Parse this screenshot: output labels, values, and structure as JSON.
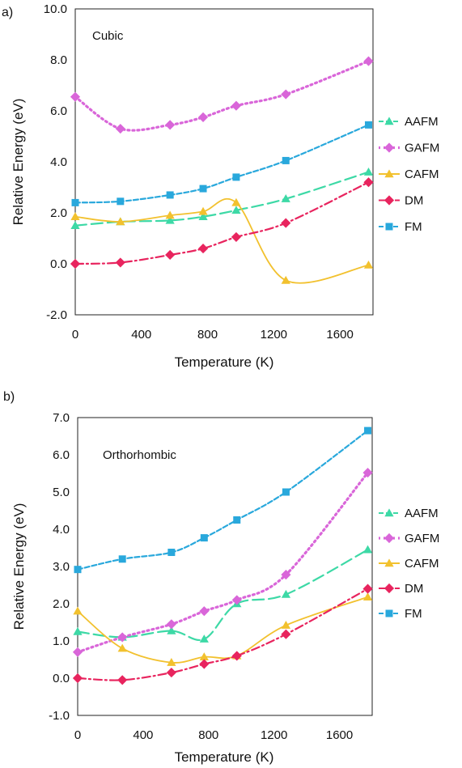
{
  "chart_data": [
    {
      "panel_label": "a)",
      "type": "line",
      "title": "Cubic",
      "xlabel": "Temperature (K)",
      "ylabel": "Relative Energy (eV)",
      "xlim": [
        0,
        1800
      ],
      "ylim": [
        -2,
        10
      ],
      "xticks": [
        0,
        400,
        800,
        1200,
        1600
      ],
      "xtick_labels": [
        "0",
        "400",
        "800",
        "1200",
        "1600"
      ],
      "yticks": [
        -2,
        0,
        2,
        4,
        6,
        8,
        10
      ],
      "ytick_labels": [
        "-2.0",
        "0.0",
        "2.0",
        "4.0",
        "6.0",
        "8.0",
        "10.0"
      ],
      "legend_position": "right",
      "series": [
        {
          "name": "AAFM",
          "color": "#3dd9a6",
          "marker": "triangle",
          "dash": "14,6",
          "x": [
            0,
            273,
            573,
            773,
            973,
            1273,
            1773
          ],
          "y": [
            1.5,
            1.65,
            1.7,
            1.85,
            2.1,
            2.55,
            3.6
          ]
        },
        {
          "name": "GAFM",
          "color": "#d966d9",
          "marker": "diamond",
          "dash": "2,4",
          "x": [
            0,
            273,
            573,
            773,
            973,
            1273,
            1773
          ],
          "y": [
            6.55,
            5.3,
            5.45,
            5.75,
            6.2,
            6.65,
            7.95
          ]
        },
        {
          "name": "CAFM",
          "color": "#f2c12e",
          "marker": "triangle",
          "dash": "",
          "x": [
            0,
            273,
            573,
            773,
            973,
            1273,
            1773
          ],
          "y": [
            1.85,
            1.65,
            1.9,
            2.05,
            2.4,
            -0.65,
            -0.05
          ]
        },
        {
          "name": "DM",
          "color": "#e8245e",
          "marker": "diamond",
          "dash": "10,4,2,4",
          "x": [
            0,
            273,
            573,
            773,
            973,
            1273,
            1773
          ],
          "y": [
            0.0,
            0.05,
            0.35,
            0.6,
            1.05,
            1.6,
            3.2
          ]
        },
        {
          "name": "FM",
          "color": "#29a8dc",
          "marker": "square",
          "dash": "6,3",
          "x": [
            0,
            273,
            573,
            773,
            973,
            1273,
            1773
          ],
          "y": [
            2.4,
            2.45,
            2.7,
            2.95,
            3.4,
            4.05,
            5.45
          ]
        }
      ]
    },
    {
      "panel_label": "b)",
      "type": "line",
      "title": "Orthorhombic",
      "xlabel": "Temperature (K)",
      "ylabel": "Relative Energy (eV)",
      "xlim": [
        0,
        1800
      ],
      "ylim": [
        -1,
        7
      ],
      "xticks": [
        0,
        400,
        800,
        1200,
        1600
      ],
      "xtick_labels": [
        "0",
        "400",
        "800",
        "1200",
        "1600"
      ],
      "yticks": [
        -1,
        0,
        1,
        2,
        3,
        4,
        5,
        6,
        7
      ],
      "ytick_labels": [
        "-1.0",
        "0.0",
        "1.0",
        "2.0",
        "3.0",
        "4.0",
        "5.0",
        "6.0",
        "7.0"
      ],
      "legend_position": "right",
      "series": [
        {
          "name": "AAFM",
          "color": "#3dd9a6",
          "marker": "triangle",
          "dash": "14,6",
          "x": [
            0,
            273,
            573,
            773,
            973,
            1273,
            1773
          ],
          "y": [
            1.25,
            1.1,
            1.27,
            1.05,
            2.0,
            2.25,
            3.45
          ]
        },
        {
          "name": "GAFM",
          "color": "#d966d9",
          "marker": "diamond",
          "dash": "2,4",
          "x": [
            0,
            273,
            573,
            773,
            973,
            1273,
            1773
          ],
          "y": [
            0.7,
            1.1,
            1.45,
            1.8,
            2.1,
            2.78,
            5.52
          ]
        },
        {
          "name": "CAFM",
          "color": "#f2c12e",
          "marker": "triangle",
          "dash": "",
          "x": [
            0,
            273,
            573,
            773,
            973,
            1273,
            1773
          ],
          "y": [
            1.8,
            0.8,
            0.42,
            0.57,
            0.6,
            1.42,
            2.18
          ]
        },
        {
          "name": "DM",
          "color": "#e8245e",
          "marker": "diamond",
          "dash": "10,4,2,4",
          "x": [
            0,
            273,
            573,
            773,
            973,
            1273,
            1773
          ],
          "y": [
            0.0,
            -0.05,
            0.15,
            0.38,
            0.6,
            1.18,
            2.4
          ]
        },
        {
          "name": "FM",
          "color": "#29a8dc",
          "marker": "square",
          "dash": "6,3",
          "x": [
            0,
            273,
            573,
            773,
            973,
            1273,
            1773
          ],
          "y": [
            2.92,
            3.2,
            3.38,
            3.77,
            4.25,
            5.0,
            6.65
          ]
        }
      ]
    }
  ]
}
